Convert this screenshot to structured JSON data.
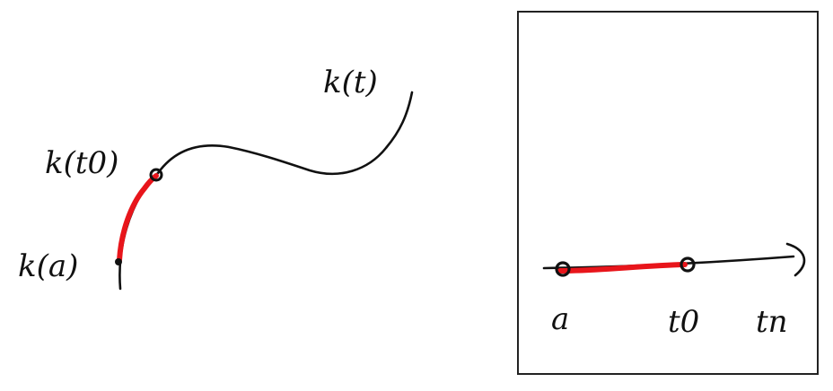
{
  "labels": {
    "curve": "k(t)",
    "start_point": "k(a)",
    "point_t0": "k(t0)",
    "axis_start": "a",
    "axis_t0": "t0",
    "axis_end": "tn"
  },
  "colors": {
    "ink": "#111111",
    "highlight": "#e8151b",
    "frame": "#222222",
    "background": "#ffffff"
  }
}
